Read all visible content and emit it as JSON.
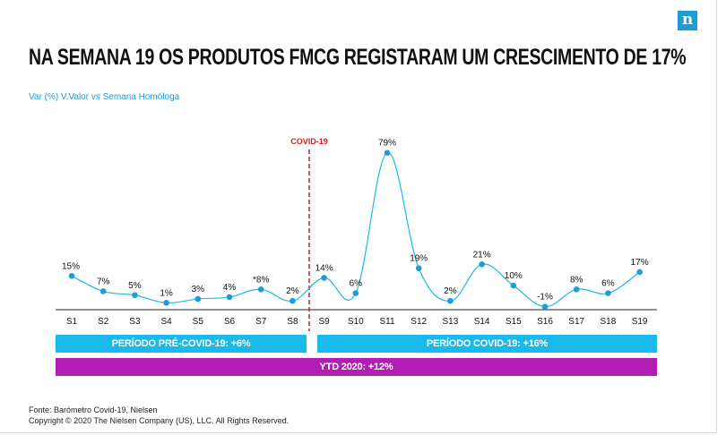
{
  "logo_text": "n",
  "title": "NA SEMANA 19 OS PRODUTOS FMCG REGISTARAM UM CRESCIMENTO DE 17%",
  "subtitle": "Var (%) V.Valor vs Semana Homóloga",
  "covid_marker_label": "COVID-19",
  "colors": {
    "line": "#1ab9ec",
    "point": "#1f9bd7",
    "covid_marker": "#d71920",
    "band_blue": "#1ab9ec",
    "band_purple": "#b21eb3"
  },
  "bands": {
    "pre_covid": "PERÍODO PRÉ-COVID-19: +6%",
    "covid": "PERÍODO COVID-19: +16%",
    "ytd": "YTD 2020: +12%"
  },
  "footer": {
    "source": "Fonte: Barómetro Covid-19, Nielsen",
    "copyright": "Copyright © 2020 The Nielsen Company (US), LLC. All Rights Reserved."
  },
  "chart_data": {
    "type": "line",
    "categories": [
      "S1",
      "S2",
      "S3",
      "S4",
      "S5",
      "S6",
      "S7",
      "S8",
      "S9",
      "S10",
      "S11",
      "S12",
      "S13",
      "S14",
      "S15",
      "S16",
      "S17",
      "S18",
      "S19"
    ],
    "values": [
      15,
      7,
      5,
      1,
      3,
      4,
      8,
      2,
      14,
      6,
      79,
      19,
      2,
      21,
      10,
      -1,
      8,
      6,
      17
    ],
    "data_labels": [
      "15%",
      "7%",
      "5%",
      "1%",
      "3%",
      "4%",
      "*8%",
      "2%",
      "14%",
      "6%",
      "79%",
      "19%",
      "2%",
      "21%",
      "10%",
      "-1%",
      "8%",
      "6%",
      "17%"
    ],
    "covid_start_between": [
      "S8",
      "S9"
    ],
    "grid": false,
    "title": "NA SEMANA 19 OS PRODUTOS FMCG REGISTARAM UM CRESCIMENTO DE 17%",
    "ylabel": "Var (%) V.Valor vs Semana Homóloga"
  }
}
